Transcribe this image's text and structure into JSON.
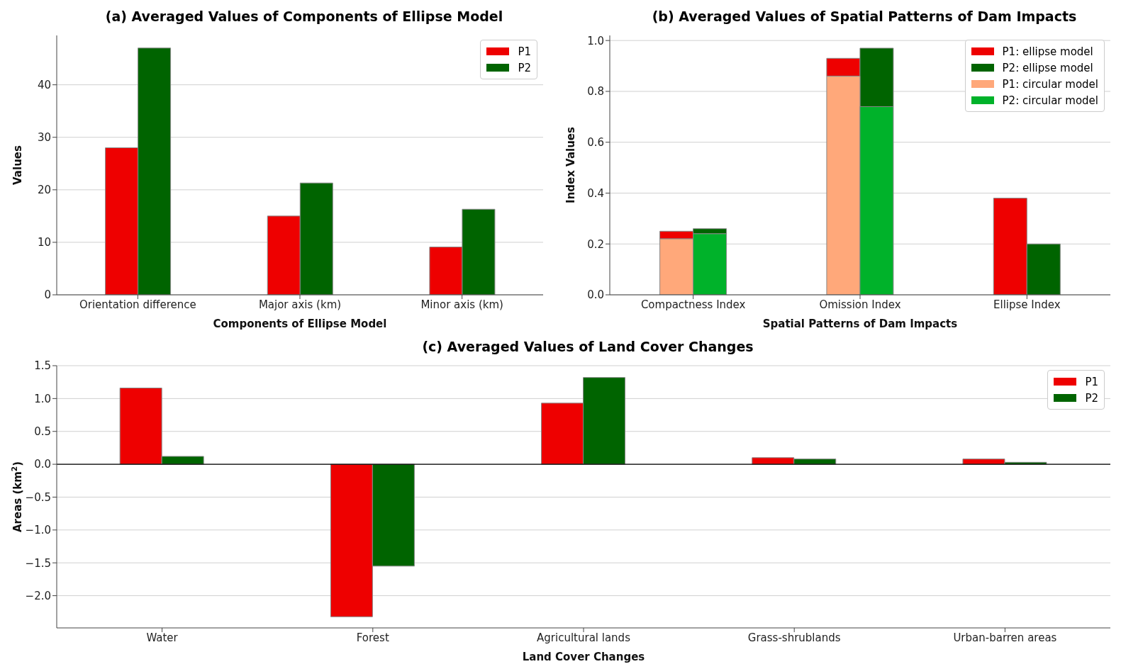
{
  "chart_data": [
    {
      "type": "bar",
      "title": "(a) Averaged Values of Components of Ellipse Model",
      "xlabel": "Components of Ellipse Model",
      "ylabel": "Values",
      "categories": [
        "Orientation difference",
        "Major axis (km)",
        "Minor axis (km)"
      ],
      "series": [
        {
          "name": "P1",
          "color": "#ee0000",
          "values": [
            28,
            15,
            9.1
          ]
        },
        {
          "name": "P2",
          "color": "#006400",
          "values": [
            47,
            21.3,
            16.3
          ]
        }
      ],
      "ylim": [
        0,
        49.4
      ],
      "yticks": [
        0,
        10,
        20,
        30,
        40
      ],
      "grid": "y",
      "legend": "top right"
    },
    {
      "type": "bar",
      "title": "(b) Averaged Values of Spatial Patterns of Dam Impacts",
      "xlabel": "Spatial Patterns of Dam Impacts",
      "ylabel": "Index Values",
      "categories": [
        "Compactness Index",
        "Omission Index",
        "Ellipse Index"
      ],
      "series": [
        {
          "name": "P1: ellipse model",
          "color": "#ee0000",
          "values": [
            0.03,
            0.07,
            0.38
          ],
          "base": [
            0.22,
            0.86,
            0
          ]
        },
        {
          "name": "P2: ellipse model",
          "color": "#006400",
          "values": [
            0.02,
            0.23,
            0.2
          ],
          "base": [
            0.24,
            0.74,
            0
          ]
        },
        {
          "name": "P1: circular model",
          "color": "#ffa87a",
          "values": [
            0.22,
            0.86,
            null
          ]
        },
        {
          "name": "P2: circular model",
          "color": "#00b22a",
          "values": [
            0.24,
            0.74,
            null
          ]
        }
      ],
      "ylim": [
        0,
        1.02
      ],
      "yticks": [
        {
          "value": 0,
          "label": "0.0"
        },
        {
          "value": 0.2,
          "label": "0.2"
        },
        {
          "value": 0.4,
          "label": "0.4"
        },
        {
          "value": 0.6,
          "label": "0.6"
        },
        {
          "value": 0.8,
          "label": "0.8"
        },
        {
          "value": 1,
          "label": "1.0"
        }
      ],
      "grid": "y",
      "legend": "top right"
    },
    {
      "type": "bar",
      "title": "(c) Averaged Values of Land Cover Changes",
      "xlabel": "Land Cover Changes",
      "ylabel": "Areas (km$^{2}$)",
      "categories": [
        "Water",
        "Forest",
        "Agricultural lands",
        "Grass-shrublands",
        "Urban-barren areas"
      ],
      "series": [
        {
          "name": "P1",
          "color": "#ee0000",
          "values": [
            1.16,
            -2.32,
            0.93,
            0.1,
            0.08
          ]
        },
        {
          "name": "P2",
          "color": "#006400",
          "values": [
            0.12,
            -1.55,
            1.32,
            0.08,
            0.03
          ]
        }
      ],
      "ylim": [
        -2.49,
        1.5
      ],
      "yticks": [
        {
          "value": -2,
          "label": "−2.0"
        },
        {
          "value": -1.5,
          "label": "−1.5"
        },
        {
          "value": -1,
          "label": "−1.0"
        },
        {
          "value": -0.5,
          "label": "−0.5"
        },
        {
          "value": 0,
          "label": "0.0"
        },
        {
          "value": 0.5,
          "label": "0.5"
        },
        {
          "value": 1,
          "label": "1.0"
        },
        {
          "value": 1.5,
          "label": "1.5"
        }
      ],
      "ref_lines": [
        {
          "axis": "y",
          "value": 0,
          "color": "#000000"
        }
      ],
      "grid": "y",
      "legend": "top right"
    }
  ]
}
